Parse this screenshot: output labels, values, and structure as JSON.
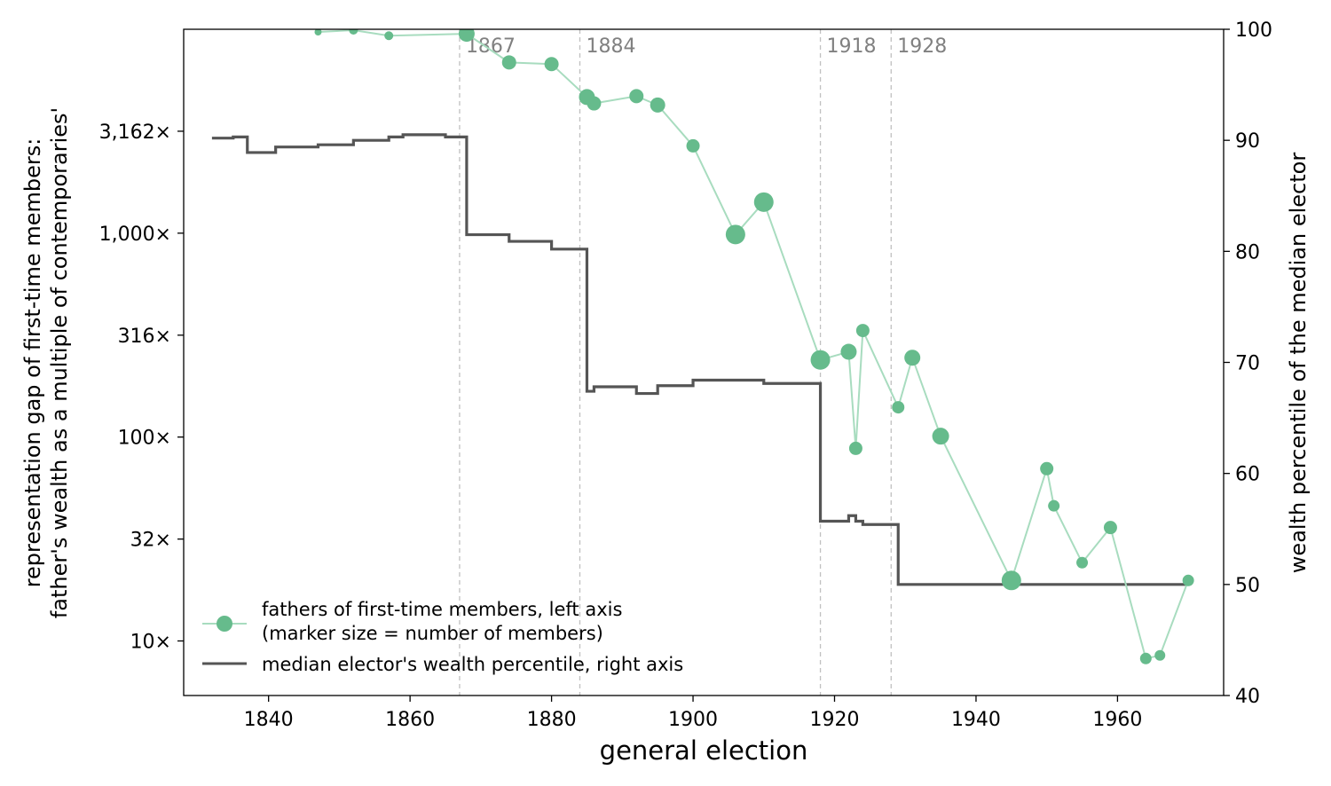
{
  "chart_data": {
    "type": "line",
    "xlabel": "general election",
    "ylabel_left_line1": "representation gap of first-time members:",
    "ylabel_left_line2": "father's wealth as a multiple of contemporaries'",
    "ylabel_right": "wealth percentile of the median elector",
    "x_range": [
      1828,
      1975
    ],
    "x_ticks": [
      1840,
      1860,
      1880,
      1900,
      1920,
      1940,
      1960
    ],
    "y_left_scale": "log",
    "y_left_range": [
      5.4,
      10000
    ],
    "y_left_ticks": [
      {
        "value": 10,
        "label": "10×"
      },
      {
        "value": 31.6,
        "label": "32×"
      },
      {
        "value": 100,
        "label": "100×"
      },
      {
        "value": 316,
        "label": "316×"
      },
      {
        "value": 1000,
        "label": "1,000×"
      },
      {
        "value": 3162,
        "label": "3,162×"
      }
    ],
    "y_right_range": [
      40,
      100
    ],
    "y_right_ticks": [
      40,
      50,
      60,
      70,
      80,
      90,
      100
    ],
    "vertical_lines": [
      {
        "x": 1867,
        "label": "1867"
      },
      {
        "x": 1884,
        "label": "1884"
      },
      {
        "x": 1918,
        "label": "1918"
      },
      {
        "x": 1928,
        "label": "1928"
      }
    ],
    "series": [
      {
        "name": "fathers of first-time members, left axis",
        "name_line2": "(marker size = number of members)",
        "axis": "left",
        "color": "#66bb8c",
        "points": [
          {
            "x": 1847,
            "y": 9700,
            "size": 4
          },
          {
            "x": 1852,
            "y": 9900,
            "size": 5
          },
          {
            "x": 1857,
            "y": 9300,
            "size": 5
          },
          {
            "x": 1868,
            "y": 9500,
            "size": 9
          },
          {
            "x": 1874,
            "y": 6880,
            "size": 8
          },
          {
            "x": 1880,
            "y": 6750,
            "size": 8
          },
          {
            "x": 1885,
            "y": 4650,
            "size": 9
          },
          {
            "x": 1886,
            "y": 4330,
            "size": 8
          },
          {
            "x": 1892,
            "y": 4700,
            "size": 8
          },
          {
            "x": 1895,
            "y": 4250,
            "size": 8.5
          },
          {
            "x": 1900,
            "y": 2680,
            "size": 7.5
          },
          {
            "x": 1906,
            "y": 985,
            "size": 11
          },
          {
            "x": 1910,
            "y": 1420,
            "size": 11
          },
          {
            "x": 1918,
            "y": 239,
            "size": 11
          },
          {
            "x": 1922,
            "y": 262,
            "size": 9
          },
          {
            "x": 1923,
            "y": 88,
            "size": 7.5
          },
          {
            "x": 1924,
            "y": 333,
            "size": 7.5
          },
          {
            "x": 1929,
            "y": 140,
            "size": 7
          },
          {
            "x": 1931,
            "y": 245,
            "size": 9
          },
          {
            "x": 1935,
            "y": 101,
            "size": 9.5
          },
          {
            "x": 1945,
            "y": 19.8,
            "size": 11
          },
          {
            "x": 1950,
            "y": 70,
            "size": 7.5
          },
          {
            "x": 1951,
            "y": 46,
            "size": 6.5
          },
          {
            "x": 1955,
            "y": 24.2,
            "size": 6.5
          },
          {
            "x": 1959,
            "y": 36,
            "size": 7.5
          },
          {
            "x": 1964,
            "y": 8.2,
            "size": 6.5
          },
          {
            "x": 1966,
            "y": 8.5,
            "size": 6
          },
          {
            "x": 1970,
            "y": 19.8,
            "size": 6.5
          }
        ]
      },
      {
        "name": "median elector's wealth percentile, right axis",
        "axis": "right",
        "color": "#555555",
        "type": "step",
        "steps": [
          {
            "x": 1832,
            "y": 90.2
          },
          {
            "x": 1835,
            "y": 90.3
          },
          {
            "x": 1837,
            "y": 88.9
          },
          {
            "x": 1841,
            "y": 89.4
          },
          {
            "x": 1847,
            "y": 89.6
          },
          {
            "x": 1852,
            "y": 90.0
          },
          {
            "x": 1857,
            "y": 90.3
          },
          {
            "x": 1859,
            "y": 90.5
          },
          {
            "x": 1865,
            "y": 90.3
          },
          {
            "x": 1868,
            "y": 81.5
          },
          {
            "x": 1874,
            "y": 80.9
          },
          {
            "x": 1880,
            "y": 80.2
          },
          {
            "x": 1885,
            "y": 67.4
          },
          {
            "x": 1886,
            "y": 67.8
          },
          {
            "x": 1892,
            "y": 67.2
          },
          {
            "x": 1895,
            "y": 67.9
          },
          {
            "x": 1900,
            "y": 68.4
          },
          {
            "x": 1906,
            "y": 68.4
          },
          {
            "x": 1910,
            "y": 68.1
          },
          {
            "x": 1918,
            "y": 55.7
          },
          {
            "x": 1922,
            "y": 56.2
          },
          {
            "x": 1923,
            "y": 55.7
          },
          {
            "x": 1924,
            "y": 55.4
          },
          {
            "x": 1929,
            "y": 50.0
          },
          {
            "x": 1970,
            "y": 50.0
          }
        ]
      }
    ],
    "legend_position": "lower-left"
  }
}
